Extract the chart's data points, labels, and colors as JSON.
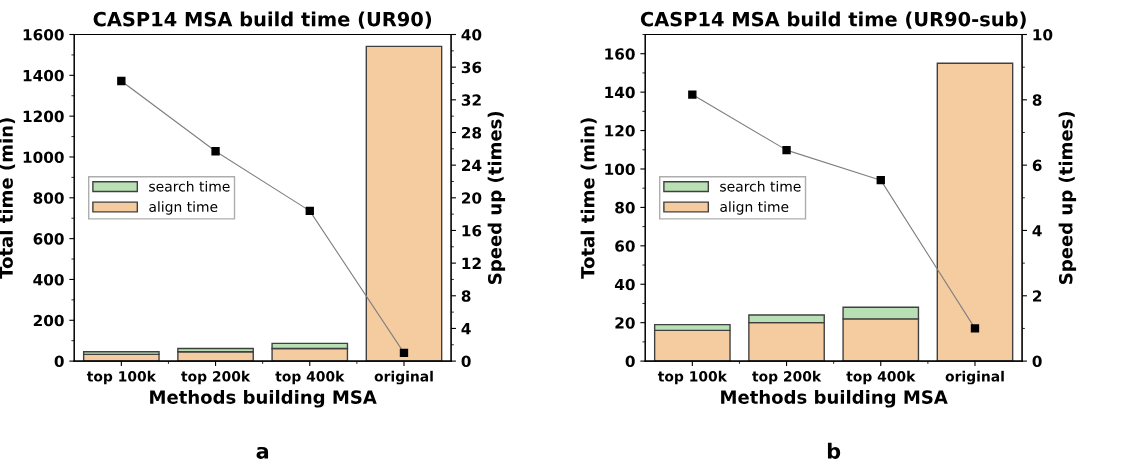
{
  "chart_data": [
    {
      "type": "bar",
      "title": "CASP14 MSA build time (UR90)",
      "xlabel": "Methods building MSA",
      "ylabel": "Total time (min)",
      "y2label": "Speed up (times)",
      "categories": [
        "top 100k",
        "top 200k",
        "top 400k",
        "original"
      ],
      "stacked": true,
      "legend": "center left",
      "ylim": [
        0,
        1600
      ],
      "yticks": [
        0,
        200,
        400,
        600,
        800,
        1000,
        1200,
        1400,
        1600
      ],
      "y2lim": [
        0,
        40
      ],
      "y2ticks": [
        0,
        4,
        8,
        12,
        16,
        20,
        24,
        28,
        32,
        36,
        40
      ],
      "annotations": [
        "a"
      ],
      "series": [
        {
          "name": "align time",
          "color": "#f5cba0",
          "values": [
            33,
            46,
            62,
            1542
          ]
        },
        {
          "name": "search time",
          "color": "#b8e0b4",
          "values": [
            13,
            16,
            25,
            null
          ]
        },
        {
          "type": "line",
          "axis": "y2",
          "color": "#808080",
          "marker": "square",
          "values": [
            34.3,
            25.7,
            18.4,
            1.0
          ]
        }
      ]
    },
    {
      "type": "bar",
      "title": "CASP14 MSA build time (UR90-sub)",
      "xlabel": "Methods building MSA",
      "ylabel": "Total time (min)",
      "y2label": "Speed up (times)",
      "categories": [
        "top 100k",
        "top 200k",
        "top 400k",
        "original"
      ],
      "stacked": true,
      "legend": "center left",
      "ylim": [
        0,
        170
      ],
      "yticks": [
        0,
        20,
        40,
        60,
        80,
        100,
        120,
        140,
        160
      ],
      "y2lim": [
        0,
        10
      ],
      "y2ticks": [
        0,
        2,
        4,
        6,
        8,
        10
      ],
      "annotations": [
        "b"
      ],
      "series": [
        {
          "name": "align time",
          "color": "#f5cba0",
          "values": [
            16,
            20,
            22,
            155
          ]
        },
        {
          "name": "search time",
          "color": "#b8e0b4",
          "values": [
            3,
            4,
            6,
            null
          ]
        },
        {
          "type": "line",
          "axis": "y2",
          "color": "#808080",
          "marker": "square",
          "values": [
            8.16,
            6.46,
            5.54,
            1.0
          ]
        }
      ]
    }
  ]
}
